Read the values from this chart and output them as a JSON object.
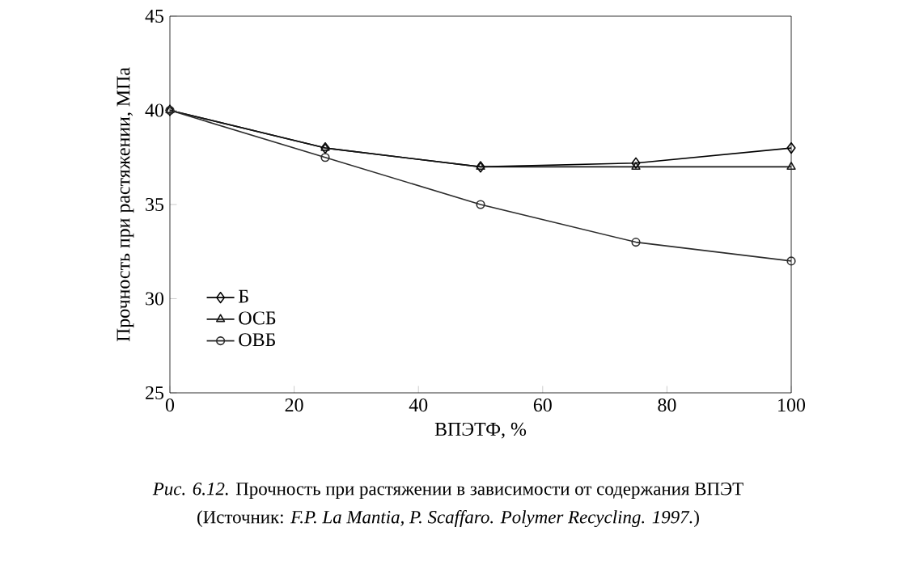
{
  "chart_data": {
    "type": "line",
    "xlabel": "ВПЭТФ, %",
    "ylabel": "Прочность при растяжении, МПа",
    "x": [
      0,
      25,
      50,
      75,
      100
    ],
    "series": [
      {
        "name": "Б",
        "color": "#000000",
        "marker": "diamond",
        "values": [
          40,
          38,
          37,
          37.2,
          38
        ]
      },
      {
        "name": "ОСБ",
        "color": "#161616",
        "marker": "triangle",
        "values": [
          40,
          38,
          37,
          37,
          37
        ]
      },
      {
        "name": "ОВБ",
        "color": "#2c2c2c",
        "marker": "circle",
        "values": [
          40,
          37.5,
          35,
          33,
          32
        ]
      }
    ],
    "xlim": [
      0,
      100
    ],
    "xticks": [
      0,
      20,
      40,
      60,
      80,
      100
    ],
    "ylim": [
      25,
      45
    ],
    "yticks": [
      25,
      30,
      35,
      40,
      45
    ],
    "grid": false,
    "legend": "bottom left",
    "line_style": "solid",
    "annotations": [
      "*Рис. 6.12.* Прочность при растяжении в зависимости от содержания ВПЭТ",
      "(Источник: *F.P. La Mantia, P. Scaffaro. Polymer Recycling. 1997.*)"
    ]
  }
}
